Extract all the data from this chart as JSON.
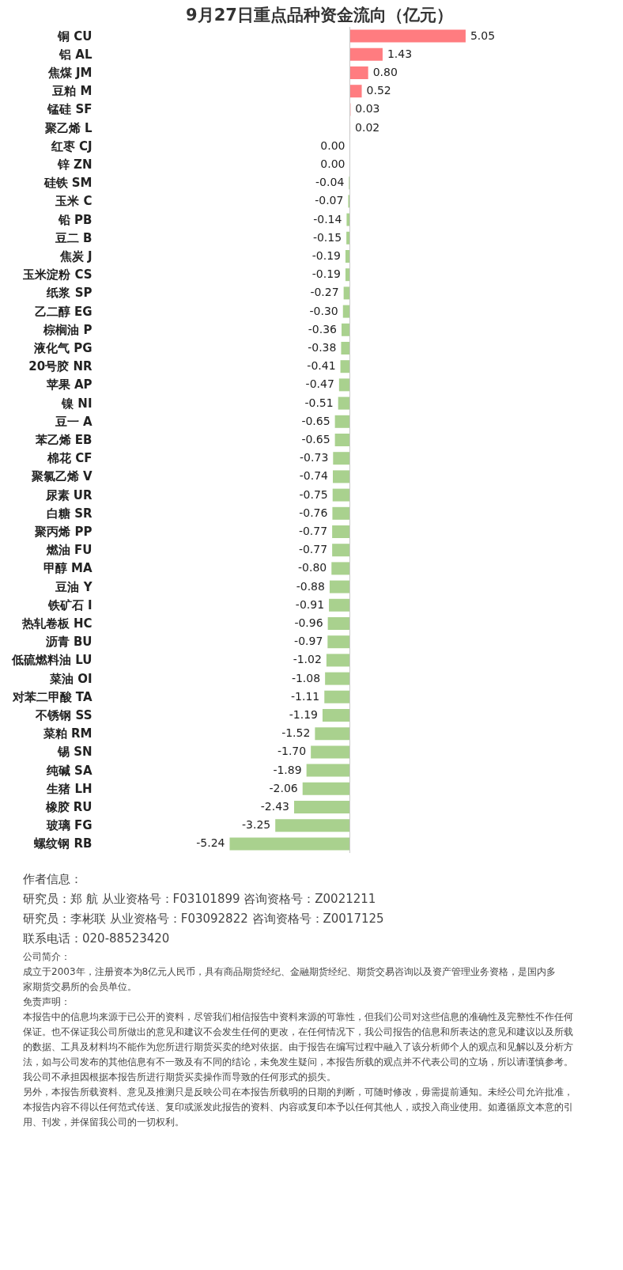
{
  "chart_data": {
    "type": "bar",
    "orientation": "horizontal",
    "title": "9月27日重点品种资金流向（亿元）",
    "categories": [
      "铜 CU",
      "铝 AL",
      "焦煤 JM",
      "豆粕 M",
      "锰硅 SF",
      "聚乙烯 L",
      "红枣 CJ",
      "锌 ZN",
      "硅铁 SM",
      "玉米 C",
      "铅 PB",
      "豆二 B",
      "焦炭 J",
      "玉米淀粉 CS",
      "纸浆 SP",
      "乙二醇 EG",
      "棕榈油 P",
      "液化气 PG",
      "20号胶 NR",
      "苹果 AP",
      "镍 NI",
      "豆一 A",
      "苯乙烯 EB",
      "棉花 CF",
      "聚氯乙烯 V",
      "尿素 UR",
      "白糖 SR",
      "聚丙烯 PP",
      "燃油 FU",
      "甲醇 MA",
      "豆油 Y",
      "铁矿石 I",
      "热轧卷板 HC",
      "沥青 BU",
      "低硫燃料油 LU",
      "菜油 OI",
      "对苯二甲酸 TA",
      "不锈钢 SS",
      "菜粕 RM",
      "锡 SN",
      "纯碱 SA",
      "生猪 LH",
      "橡胶 RU",
      "玻璃 FG",
      "螺纹钢 RB"
    ],
    "values": [
      5.05,
      1.43,
      0.8,
      0.52,
      0.03,
      0.02,
      0.0,
      0.0,
      -0.04,
      -0.07,
      -0.14,
      -0.15,
      -0.19,
      -0.19,
      -0.27,
      -0.3,
      -0.36,
      -0.38,
      -0.41,
      -0.47,
      -0.51,
      -0.65,
      -0.65,
      -0.73,
      -0.74,
      -0.75,
      -0.76,
      -0.77,
      -0.77,
      -0.8,
      -0.88,
      -0.91,
      -0.96,
      -0.97,
      -1.02,
      -1.08,
      -1.11,
      -1.19,
      -1.52,
      -1.7,
      -1.89,
      -2.06,
      -2.43,
      -3.25,
      -5.24
    ],
    "colors": [
      "#ff7c80",
      "#ff7c80",
      "#ff7c80",
      "#ff7c80",
      "#ff7c80",
      "#ff7c80",
      "#a9d18e",
      "#a9d18e",
      "#a9d18e",
      "#a9d18e",
      "#a9d18e",
      "#a9d18e",
      "#a9d18e",
      "#a9d18e",
      "#a9d18e",
      "#a9d18e",
      "#a9d18e",
      "#a9d18e",
      "#a9d18e",
      "#a9d18e",
      "#a9d18e",
      "#a9d18e",
      "#a9d18e",
      "#a9d18e",
      "#a9d18e",
      "#a9d18e",
      "#a9d18e",
      "#a9d18e",
      "#a9d18e",
      "#a9d18e",
      "#a9d18e",
      "#a9d18e",
      "#a9d18e",
      "#a9d18e",
      "#a9d18e",
      "#a9d18e",
      "#a9d18e",
      "#a9d18e",
      "#a9d18e",
      "#a9d18e",
      "#a9d18e",
      "#a9d18e",
      "#a9d18e",
      "#a9d18e",
      "#a9d18e"
    ],
    "value_labels": [
      "5.05",
      "1.43",
      "0.80",
      "0.52",
      "0.03",
      "0.02",
      "0.00",
      "0.00",
      "-0.04",
      "-0.07",
      "-0.14",
      "-0.15",
      "-0.19",
      "-0.19",
      "-0.27",
      "-0.30",
      "-0.36",
      "-0.38",
      "-0.41",
      "-0.47",
      "-0.51",
      "-0.65",
      "-0.65",
      "-0.73",
      "-0.74",
      "-0.75",
      "-0.76",
      "-0.77",
      "-0.77",
      "-0.80",
      "-0.88",
      "-0.91",
      "-0.96",
      "-0.97",
      "-1.02",
      "-1.08",
      "-1.11",
      "-1.19",
      "-1.52",
      "-1.70",
      "-1.89",
      "-2.06",
      "-2.43",
      "-3.25",
      "-5.24"
    ],
    "annotations": [
      "作者信息：",
      "研究员：郑 航    从业资格号：F03101899  咨询资格号：Z0021211",
      "研究员：李彬联   从业资格号：F03092822  咨询资格号：Z0017125",
      "联系电话：020-88523420",
      "公司简介：",
      "成立于2003年，注册资本为8亿元人民币，具有商品期货经纪、金融期货经纪、期货交易咨询以及资产管理业务资格，是国内多家期货交易所的会员单位。",
      "免责声明：",
      "本报告中的信息均来源于已公开的资料，尽管我们相信报告中资料来源的可靠性，但我们公司对这些信息的准确性及完整性不作任何保证。也不保证我公司所做出的意见和建议不会发生任何的更改，在任何情况下，我公司报告的信息和所表达的意见和建议以及所载的数据、工具及材料均不能作为您所进行期货买卖的绝对依据。由于报告在编写过程中融入了该分析师个人的观点和见解以及分析方法，如与公司发布的其他信息有不一致及有不同的结论，未免发生疑问，本报告所载的观点并不代表公司的立场，所以请谨慎参考。我公司不承担因根据本报告所进行期货买卖操作而导致的任何形式的损失。",
      "另外，本报告所载资料、意见及推测只是反映公司在本报告所载明的日期的判断，可随时修改，毋需提前通知。未经公司允许批准，本报告内容不得以任何范式传送、复印或派发此报告的资料、内容或复印本予以任何其他人，或投入商业使用。如遵循原文本意的引用、刊发，并保留我公司的一切权利。"
    ]
  }
}
